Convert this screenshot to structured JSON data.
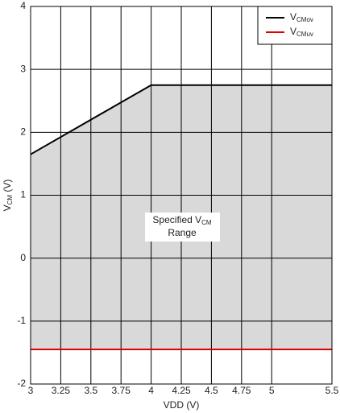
{
  "chart_data": {
    "type": "line",
    "x_label": "VDD (V)",
    "y_label": "VCM (V)",
    "annotation": [
      "Specified VCM",
      "Range"
    ],
    "x": [
      3,
      4,
      5.5
    ],
    "series": [
      {
        "name": "VCMov",
        "color": "#000000",
        "values": [
          1.65,
          2.75,
          2.75
        ]
      },
      {
        "name": "VCMuv",
        "color": "#e00000",
        "values": [
          -1.45,
          -1.45,
          -1.45
        ]
      }
    ],
    "fill_color": "#d9d9d9",
    "xlim": [
      3,
      5.5
    ],
    "xticks": [
      3,
      3.25,
      3.5,
      3.75,
      4,
      4.25,
      4.5,
      4.75,
      5,
      5.5
    ],
    "ylim": [
      -2,
      4
    ],
    "yticks": [
      -2,
      -1,
      0,
      1,
      2,
      3,
      4
    ],
    "grid": true,
    "legend": "upper right"
  }
}
